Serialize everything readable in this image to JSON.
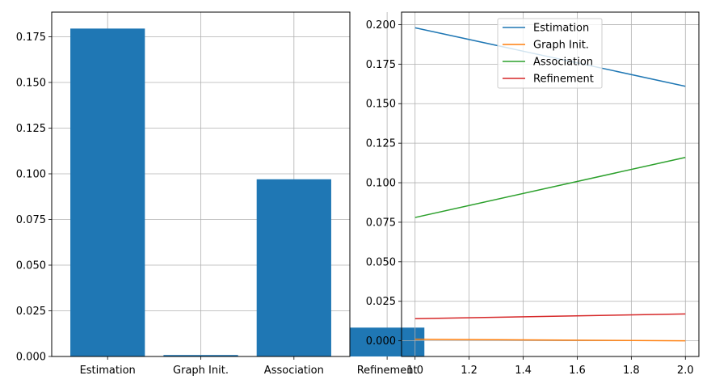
{
  "chart_data": [
    {
      "type": "bar",
      "categories": [
        "Estimation",
        "Graph Init.",
        "Association",
        "Refinement"
      ],
      "values": [
        0.1795,
        0.0008,
        0.097,
        0.0158
      ],
      "ylim": [
        0,
        0.1885
      ],
      "yticks": [
        "0.000",
        "0.025",
        "0.050",
        "0.075",
        "0.100",
        "0.125",
        "0.150",
        "0.175"
      ],
      "grid": true,
      "color": "#1f77b4"
    },
    {
      "type": "line",
      "x": [
        1.0,
        2.0
      ],
      "xlim": [
        0.95,
        2.05
      ],
      "ylim": [
        -0.0099,
        0.2079
      ],
      "xticks": [
        "1.0",
        "1.2",
        "1.4",
        "1.6",
        "1.8",
        "2.0"
      ],
      "yticks": [
        "0.000",
        "0.025",
        "0.050",
        "0.075",
        "0.100",
        "0.125",
        "0.150",
        "0.175",
        "0.200"
      ],
      "grid": true,
      "legend_position": "top-center",
      "series": [
        {
          "name": "Estimation",
          "values": [
            0.198,
            0.161
          ],
          "color": "#1f77b4"
        },
        {
          "name": "Graph Init.",
          "values": [
            0.001,
            0.0
          ],
          "color": "#ff7f0e"
        },
        {
          "name": "Association",
          "values": [
            0.078,
            0.116
          ],
          "color": "#2ca02c"
        },
        {
          "name": "Refinement",
          "values": [
            0.014,
            0.017
          ],
          "color": "#d62728"
        }
      ]
    }
  ]
}
